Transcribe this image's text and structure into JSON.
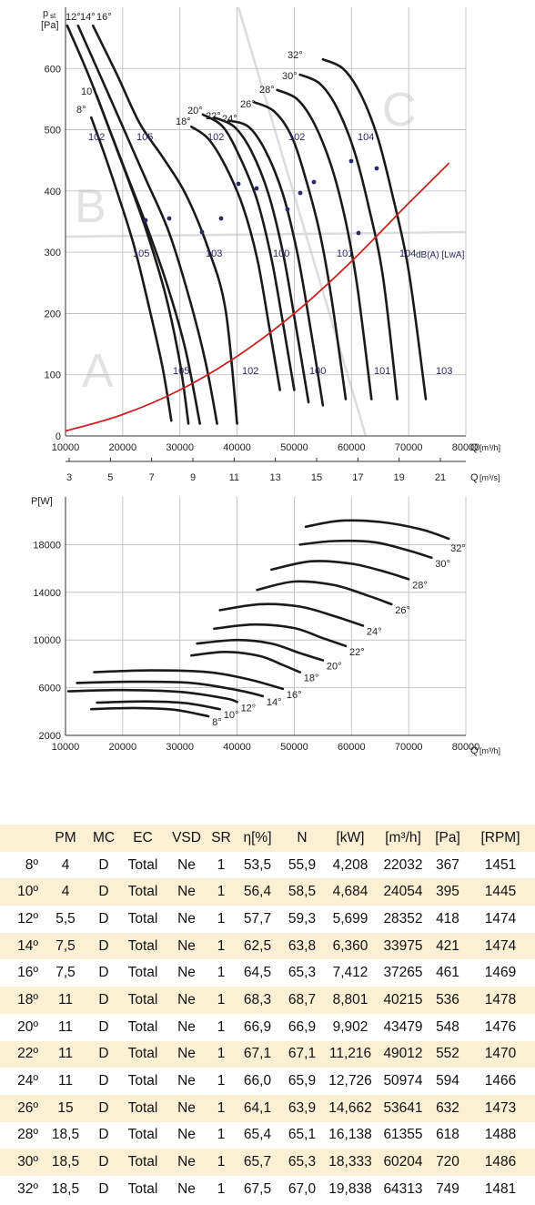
{
  "pressure_chart": {
    "y_label_main": "p",
    "y_label_sub": "st",
    "y_unit": "[Pa]",
    "x_label": "Q",
    "x_unit": "[m³/h]",
    "x2_unit": "[m³/s]",
    "noise_unit": "dB(A) [LwA]",
    "zones": [
      "A",
      "B",
      "C"
    ],
    "chart_data": {
      "type": "line",
      "xlim": [
        10000,
        80000
      ],
      "ylim": [
        0,
        700
      ],
      "x_ticks": [
        10000,
        20000,
        30000,
        40000,
        50000,
        60000,
        70000,
        80000
      ],
      "y_ticks": [
        0,
        100,
        200,
        300,
        400,
        500,
        600
      ],
      "x2_ticks": [
        "3",
        "5",
        "7",
        "9",
        "11",
        "13",
        "15",
        "17",
        "19",
        "21"
      ],
      "grid": true,
      "series": [
        {
          "name": "8°",
          "points": [
            [
              14500,
              520
            ],
            [
              17000,
              455
            ],
            [
              19500,
              385
            ],
            [
              22000,
              310
            ],
            [
              24500,
              215
            ],
            [
              27000,
              110
            ],
            [
              28500,
              25
            ]
          ]
        },
        {
          "name": "10°",
          "points": [
            [
              15500,
              555
            ],
            [
              18500,
              480
            ],
            [
              21500,
              405
            ],
            [
              24500,
              325
            ],
            [
              27500,
              230
            ],
            [
              30000,
              120
            ],
            [
              31500,
              20
            ]
          ]
        },
        {
          "name": "12°",
          "points": [
            [
              10300,
              670
            ],
            [
              14000,
              590
            ],
            [
              17500,
              505
            ],
            [
              21000,
              420
            ],
            [
              24500,
              335
            ],
            [
              28000,
              240
            ],
            [
              31000,
              140
            ],
            [
              33500,
              20
            ]
          ]
        },
        {
          "name": "14°",
          "points": [
            [
              12200,
              670
            ],
            [
              16000,
              590
            ],
            [
              20000,
              505
            ],
            [
              24000,
              420
            ],
            [
              28000,
              335
            ],
            [
              31500,
              230
            ],
            [
              34500,
              120
            ],
            [
              36500,
              20
            ]
          ]
        },
        {
          "name": "16°",
          "points": [
            [
              14800,
              670
            ],
            [
              19000,
              590
            ],
            [
              23000,
              510
            ],
            [
              27000,
              455
            ],
            [
              31000,
              395
            ],
            [
              35000,
              305
            ],
            [
              38000,
              205
            ],
            [
              40000,
              20
            ]
          ]
        },
        {
          "name": "18°",
          "points": [
            [
              32000,
              505
            ],
            [
              35000,
              485
            ],
            [
              38000,
              440
            ],
            [
              41000,
              375
            ],
            [
              43500,
              290
            ],
            [
              45500,
              185
            ],
            [
              47500,
              75
            ]
          ]
        },
        {
          "name": "20°",
          "points": [
            [
              34000,
              525
            ],
            [
              37500,
              505
            ],
            [
              40500,
              455
            ],
            [
              43500,
              385
            ],
            [
              46000,
              290
            ],
            [
              48000,
              185
            ],
            [
              50000,
              75
            ]
          ]
        },
        {
          "name": "22°",
          "points": [
            [
              36000,
              520
            ],
            [
              39500,
              505
            ],
            [
              42500,
              465
            ],
            [
              45500,
              395
            ],
            [
              48000,
              300
            ],
            [
              50000,
              195
            ],
            [
              52500,
              55
            ]
          ]
        },
        {
          "name": "24°",
          "points": [
            [
              38500,
              515
            ],
            [
              42000,
              505
            ],
            [
              45000,
              465
            ],
            [
              48000,
              395
            ],
            [
              50500,
              300
            ],
            [
              52500,
              195
            ],
            [
              55000,
              50
            ]
          ]
        },
        {
          "name": "26°",
          "points": [
            [
              43000,
              545
            ],
            [
              46500,
              530
            ],
            [
              49500,
              490
            ],
            [
              52000,
              420
            ],
            [
              54500,
              330
            ],
            [
              56500,
              225
            ],
            [
              59000,
              60
            ]
          ]
        },
        {
          "name": "28°",
          "points": [
            [
              47000,
              565
            ],
            [
              50500,
              550
            ],
            [
              53500,
              510
            ],
            [
              56500,
              440
            ],
            [
              59000,
              350
            ],
            [
              61000,
              245
            ],
            [
              63500,
              60
            ]
          ]
        },
        {
          "name": "30°",
          "points": [
            [
              51000,
              590
            ],
            [
              54500,
              575
            ],
            [
              57500,
              535
            ],
            [
              60500,
              465
            ],
            [
              63000,
              375
            ],
            [
              65500,
              260
            ],
            [
              68000,
              60
            ]
          ]
        },
        {
          "name": "32°",
          "points": [
            [
              55000,
              615
            ],
            [
              58500,
              600
            ],
            [
              61500,
              560
            ],
            [
              64500,
              490
            ],
            [
              67000,
              400
            ],
            [
              70000,
              270
            ],
            [
              73000,
              60
            ]
          ]
        },
        {
          "name": "",
          "points": [
            [
              10000,
              8
            ],
            [
              20000,
              35
            ],
            [
              30000,
              75
            ],
            [
              40000,
              130
            ],
            [
              50000,
              200
            ],
            [
              60000,
              285
            ],
            [
              70000,
              380
            ],
            [
              77000,
              445
            ]
          ]
        }
      ],
      "noise_labels": [
        "102",
        "105",
        "102",
        "102",
        "104",
        "105",
        "103",
        "100",
        "101",
        "104",
        "105",
        "102",
        "100",
        "101",
        "103"
      ]
    }
  },
  "power_chart": {
    "y_label": "P[W]",
    "x_label": "Q",
    "x_unit": "[m³/h]",
    "chart_data": {
      "type": "line",
      "xlim": [
        10000,
        80000
      ],
      "ylim": [
        2000,
        22000
      ],
      "x_ticks": [
        10000,
        20000,
        30000,
        40000,
        50000,
        60000,
        70000,
        80000
      ],
      "y_ticks": [
        2000,
        6000,
        10000,
        14000,
        18000
      ],
      "grid": true,
      "series": [
        {
          "name": "8°",
          "points": [
            [
              14500,
              4200
            ],
            [
              22000,
              4300
            ],
            [
              29000,
              4150
            ],
            [
              35000,
              3600
            ]
          ]
        },
        {
          "name": "10°",
          "points": [
            [
              15500,
              4750
            ],
            [
              24000,
              4850
            ],
            [
              31000,
              4700
            ],
            [
              37000,
              4200
            ]
          ]
        },
        {
          "name": "12°",
          "points": [
            [
              10500,
              5700
            ],
            [
              20000,
              5800
            ],
            [
              30000,
              5650
            ],
            [
              38000,
              5100
            ],
            [
              40000,
              4800
            ]
          ]
        },
        {
          "name": "14°",
          "points": [
            [
              12000,
              6400
            ],
            [
              22000,
              6500
            ],
            [
              32000,
              6400
            ],
            [
              40000,
              5800
            ],
            [
              44500,
              5300
            ]
          ]
        },
        {
          "name": "16°",
          "points": [
            [
              15000,
              7300
            ],
            [
              25000,
              7450
            ],
            [
              35000,
              7300
            ],
            [
              42000,
              6700
            ],
            [
              48000,
              5900
            ]
          ]
        },
        {
          "name": "18°",
          "points": [
            [
              32000,
              8700
            ],
            [
              38000,
              9000
            ],
            [
              44000,
              8650
            ],
            [
              48000,
              7900
            ],
            [
              51000,
              7300
            ]
          ]
        },
        {
          "name": "20°",
          "points": [
            [
              33000,
              9700
            ],
            [
              40000,
              10000
            ],
            [
              46000,
              9700
            ],
            [
              51000,
              8900
            ],
            [
              55000,
              8300
            ]
          ]
        },
        {
          "name": "22°",
          "points": [
            [
              36000,
              10950
            ],
            [
              43000,
              11300
            ],
            [
              50000,
              11000
            ],
            [
              55000,
              10150
            ],
            [
              59000,
              9500
            ]
          ]
        },
        {
          "name": "24°",
          "points": [
            [
              37000,
              12500
            ],
            [
              44000,
              13000
            ],
            [
              51000,
              12800
            ],
            [
              57000,
              12000
            ],
            [
              62000,
              11200
            ]
          ]
        },
        {
          "name": "26°",
          "points": [
            [
              43500,
              14200
            ],
            [
              50000,
              14900
            ],
            [
              57000,
              14600
            ],
            [
              63000,
              13700
            ],
            [
              67000,
              13000
            ]
          ]
        },
        {
          "name": "28°",
          "points": [
            [
              46000,
              15900
            ],
            [
              53000,
              16600
            ],
            [
              60000,
              16400
            ],
            [
              66000,
              15700
            ],
            [
              70000,
              15100
            ]
          ]
        },
        {
          "name": "30°",
          "points": [
            [
              51000,
              18000
            ],
            [
              57000,
              18300
            ],
            [
              64000,
              18200
            ],
            [
              70000,
              17500
            ],
            [
              74000,
              16900
            ]
          ]
        },
        {
          "name": "32°",
          "points": [
            [
              52000,
              19500
            ],
            [
              58000,
              20000
            ],
            [
              65000,
              19900
            ],
            [
              72000,
              19300
            ],
            [
              77000,
              18500
            ]
          ]
        }
      ]
    }
  },
  "table": {
    "headers": [
      "",
      "PM",
      "MC",
      "EC",
      "VSD",
      "SR",
      "η[%]",
      "N",
      "[kW]",
      "[m³/h]",
      "[Pa]",
      "[RPM]"
    ],
    "rows": [
      [
        "8º",
        "4",
        "D",
        "Total",
        "Ne",
        "1",
        "53,5",
        "55,9",
        "4,208",
        "22032",
        "367",
        "1451"
      ],
      [
        "10º",
        "4",
        "D",
        "Total",
        "Ne",
        "1",
        "56,4",
        "58,5",
        "4,684",
        "24054",
        "395",
        "1445"
      ],
      [
        "12º",
        "5,5",
        "D",
        "Total",
        "Ne",
        "1",
        "57,7",
        "59,3",
        "5,699",
        "28352",
        "418",
        "1474"
      ],
      [
        "14º",
        "7,5",
        "D",
        "Total",
        "Ne",
        "1",
        "62,5",
        "63,8",
        "6,360",
        "33975",
        "421",
        "1474"
      ],
      [
        "16º",
        "7,5",
        "D",
        "Total",
        "Ne",
        "1",
        "64,5",
        "65,3",
        "7,412",
        "37265",
        "461",
        "1469"
      ],
      [
        "18º",
        "11",
        "D",
        "Total",
        "Ne",
        "1",
        "68,3",
        "68,7",
        "8,801",
        "40215",
        "536",
        "1478"
      ],
      [
        "20º",
        "11",
        "D",
        "Total",
        "Ne",
        "1",
        "66,9",
        "66,9",
        "9,902",
        "43479",
        "548",
        "1476"
      ],
      [
        "22º",
        "11",
        "D",
        "Total",
        "Ne",
        "1",
        "67,1",
        "67,1",
        "11,216",
        "49012",
        "552",
        "1470"
      ],
      [
        "24º",
        "11",
        "D",
        "Total",
        "Ne",
        "1",
        "66,0",
        "65,9",
        "12,726",
        "50974",
        "594",
        "1466"
      ],
      [
        "26º",
        "15",
        "D",
        "Total",
        "Ne",
        "1",
        "64,1",
        "63,9",
        "14,662",
        "53641",
        "632",
        "1473"
      ],
      [
        "28º",
        "18,5",
        "D",
        "Total",
        "Ne",
        "1",
        "65,4",
        "65,1",
        "16,138",
        "61355",
        "618",
        "1488"
      ],
      [
        "30º",
        "18,5",
        "D",
        "Total",
        "Ne",
        "1",
        "65,7",
        "65,3",
        "18,333",
        "60204",
        "720",
        "1486"
      ],
      [
        "32º",
        "18,5",
        "D",
        "Total",
        "Ne",
        "1",
        "67,5",
        "67,0",
        "19,838",
        "64313",
        "749",
        "1481"
      ]
    ]
  }
}
